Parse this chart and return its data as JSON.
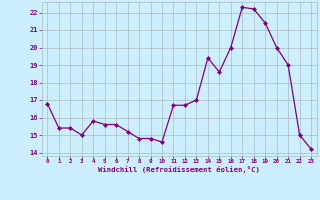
{
  "x": [
    0,
    1,
    2,
    3,
    4,
    5,
    6,
    7,
    8,
    9,
    10,
    11,
    12,
    13,
    14,
    15,
    16,
    17,
    18,
    19,
    20,
    21,
    22,
    23
  ],
  "y": [
    16.8,
    15.4,
    15.4,
    15.0,
    15.8,
    15.6,
    15.6,
    15.2,
    14.8,
    14.8,
    14.6,
    16.7,
    16.7,
    17.0,
    19.4,
    18.6,
    20.0,
    22.3,
    22.2,
    21.4,
    20.0,
    19.0,
    15.0,
    14.2
  ],
  "line_color": "#800080",
  "marker_color": "#800080",
  "bg_color": "#cceeff",
  "grid_color": "#aabbc0",
  "xlabel": "Windchill (Refroidissement éolien,°C)",
  "ylabel_ticks": [
    14,
    15,
    16,
    17,
    18,
    19,
    20,
    21,
    22
  ],
  "ylim": [
    13.8,
    22.6
  ],
  "xlim": [
    -0.5,
    23.5
  ],
  "tick_color": "#800080",
  "xlabel_color": "#800080"
}
